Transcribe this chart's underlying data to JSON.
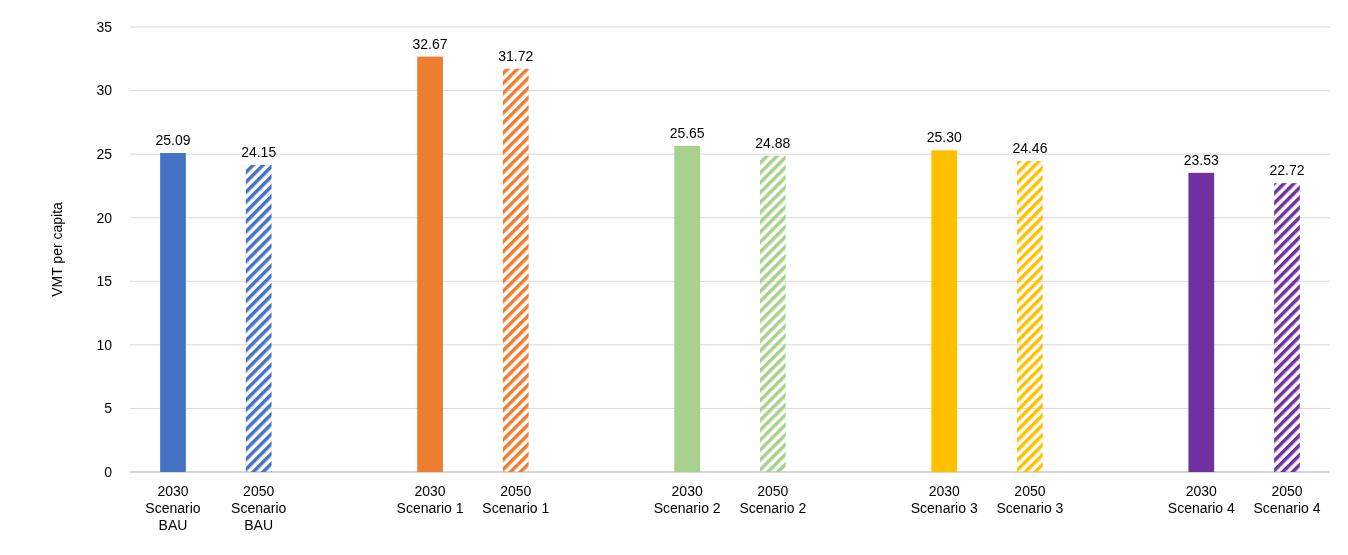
{
  "chart_data": {
    "type": "bar",
    "ylabel": "VMT per capita",
    "categories": [
      "2030 Scenario BAU",
      "2050 Scenario BAU",
      null,
      "2030 Scenario 1",
      "2050 Scenario 1",
      null,
      "2030 Scenario 2",
      "2050 Scenario 2",
      null,
      "2030 Scenario 3",
      "2050 Scenario 3",
      null,
      "2030 Scenario 4",
      "2050 Scenario 4"
    ],
    "series": [
      {
        "type": "bar",
        "colors": [
          "#4472c4",
          null,
          null,
          "#ed7d31",
          null,
          null,
          "#a9d18e",
          null,
          null,
          "#ffc000",
          null,
          null,
          "#7030a0",
          null
        ],
        "values": [
          25.09,
          null,
          null,
          32.67,
          null,
          null,
          25.65,
          null,
          null,
          25.3,
          null,
          null,
          23.53,
          null
        ],
        "value_labels": [
          "25.09",
          null,
          null,
          "32.67",
          null,
          null,
          "25.65",
          null,
          null,
          "25.30",
          null,
          null,
          "23.53",
          null
        ]
      },
      {
        "type": "bar",
        "colors": [
          null,
          "#4472c4",
          null,
          null,
          "#ed7d31",
          null,
          null,
          "#a9d18e",
          null,
          null,
          "#ffc000",
          null,
          null,
          "#7030a0"
        ],
        "values": [
          null,
          24.15,
          null,
          null,
          31.72,
          null,
          null,
          24.88,
          null,
          null,
          24.46,
          null,
          null,
          22.72
        ],
        "value_labels": [
          null,
          "24.15",
          null,
          null,
          "31.72",
          null,
          null,
          "24.88",
          null,
          null,
          "24.46",
          null,
          null,
          "22.72"
        ]
      }
    ],
    "ylim": [
      0,
      35
    ],
    "yticks": [
      0,
      5,
      10,
      15,
      20,
      25,
      30,
      35
    ],
    "grid": "y"
  }
}
